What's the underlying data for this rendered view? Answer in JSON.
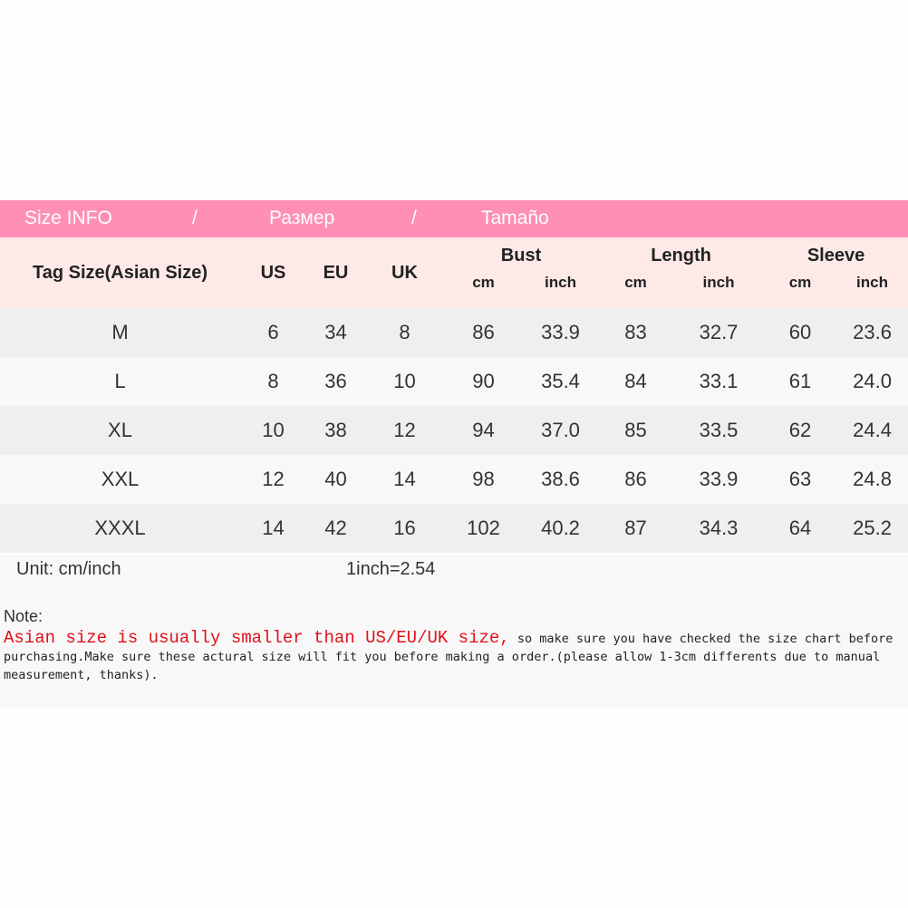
{
  "banner": {
    "title_en": "Size INFO",
    "sep1": "/",
    "title_ru": "Размер",
    "sep2": "/",
    "title_es": "Tamaño",
    "color": "#ff8fb6"
  },
  "headers": {
    "tag": "Tag Size(Asian Size)",
    "us": "US",
    "eu": "EU",
    "uk": "UK",
    "bust": "Bust",
    "length": "Length",
    "sleeve": "Sleeve",
    "cm": "cm",
    "inch": "inch"
  },
  "rows": [
    [
      "M",
      "6",
      "34",
      "8",
      "86",
      "33.9",
      "83",
      "32.7",
      "60",
      "23.6"
    ],
    [
      "L",
      "8",
      "36",
      "10",
      "90",
      "35.4",
      "84",
      "33.1",
      "61",
      "24.0"
    ],
    [
      "XL",
      "10",
      "38",
      "12",
      "94",
      "37.0",
      "85",
      "33.5",
      "62",
      "24.4"
    ],
    [
      "XXL",
      "12",
      "40",
      "14",
      "98",
      "38.6",
      "86",
      "33.9",
      "63",
      "24.8"
    ],
    [
      "XXXL",
      "14",
      "42",
      "16",
      "102",
      "40.2",
      "87",
      "34.3",
      "64",
      "25.2"
    ]
  ],
  "footer": {
    "unit": "Unit: cm/inch",
    "conversion": "1inch=2.54"
  },
  "note": {
    "heading": "Note:",
    "highlight": "Asian size is usually smaller than US/EU/UK size,",
    "body": " so make sure you have checked the size chart before purchasing.Make sure these actural size will fit you before making a order.(please allow 1-3cm differents due to manual measurement, thanks).",
    "highlight_color": "#e0101a"
  }
}
